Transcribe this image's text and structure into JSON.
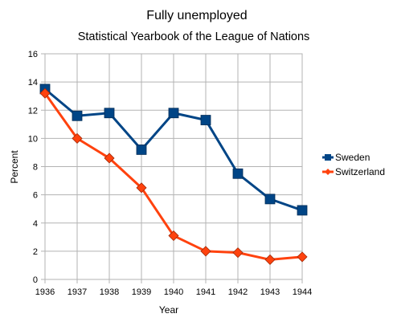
{
  "chart_data": {
    "type": "line",
    "title": "Fully unemployed",
    "subtitle": "Statistical Yearbook of the League of Nations",
    "xlabel": "Year",
    "ylabel": "Percent",
    "ylim": [
      0,
      16
    ],
    "ytick_step": 2,
    "x": [
      "1936",
      "1937",
      "1938",
      "1939",
      "1940",
      "1941",
      "1942",
      "1943",
      "1944"
    ],
    "grid": "horizontal and vertical",
    "legend_position": "right",
    "series": [
      {
        "name": "Sweden",
        "color": "#004586",
        "marker": "square",
        "values": [
          13.5,
          11.6,
          11.8,
          9.2,
          11.8,
          11.3,
          7.5,
          5.7,
          4.9
        ]
      },
      {
        "name": "Switzerland",
        "color": "#ff420e",
        "marker": "diamond",
        "values": [
          13.2,
          10.0,
          8.6,
          6.5,
          3.1,
          2.0,
          1.9,
          1.4,
          1.6
        ]
      }
    ]
  }
}
